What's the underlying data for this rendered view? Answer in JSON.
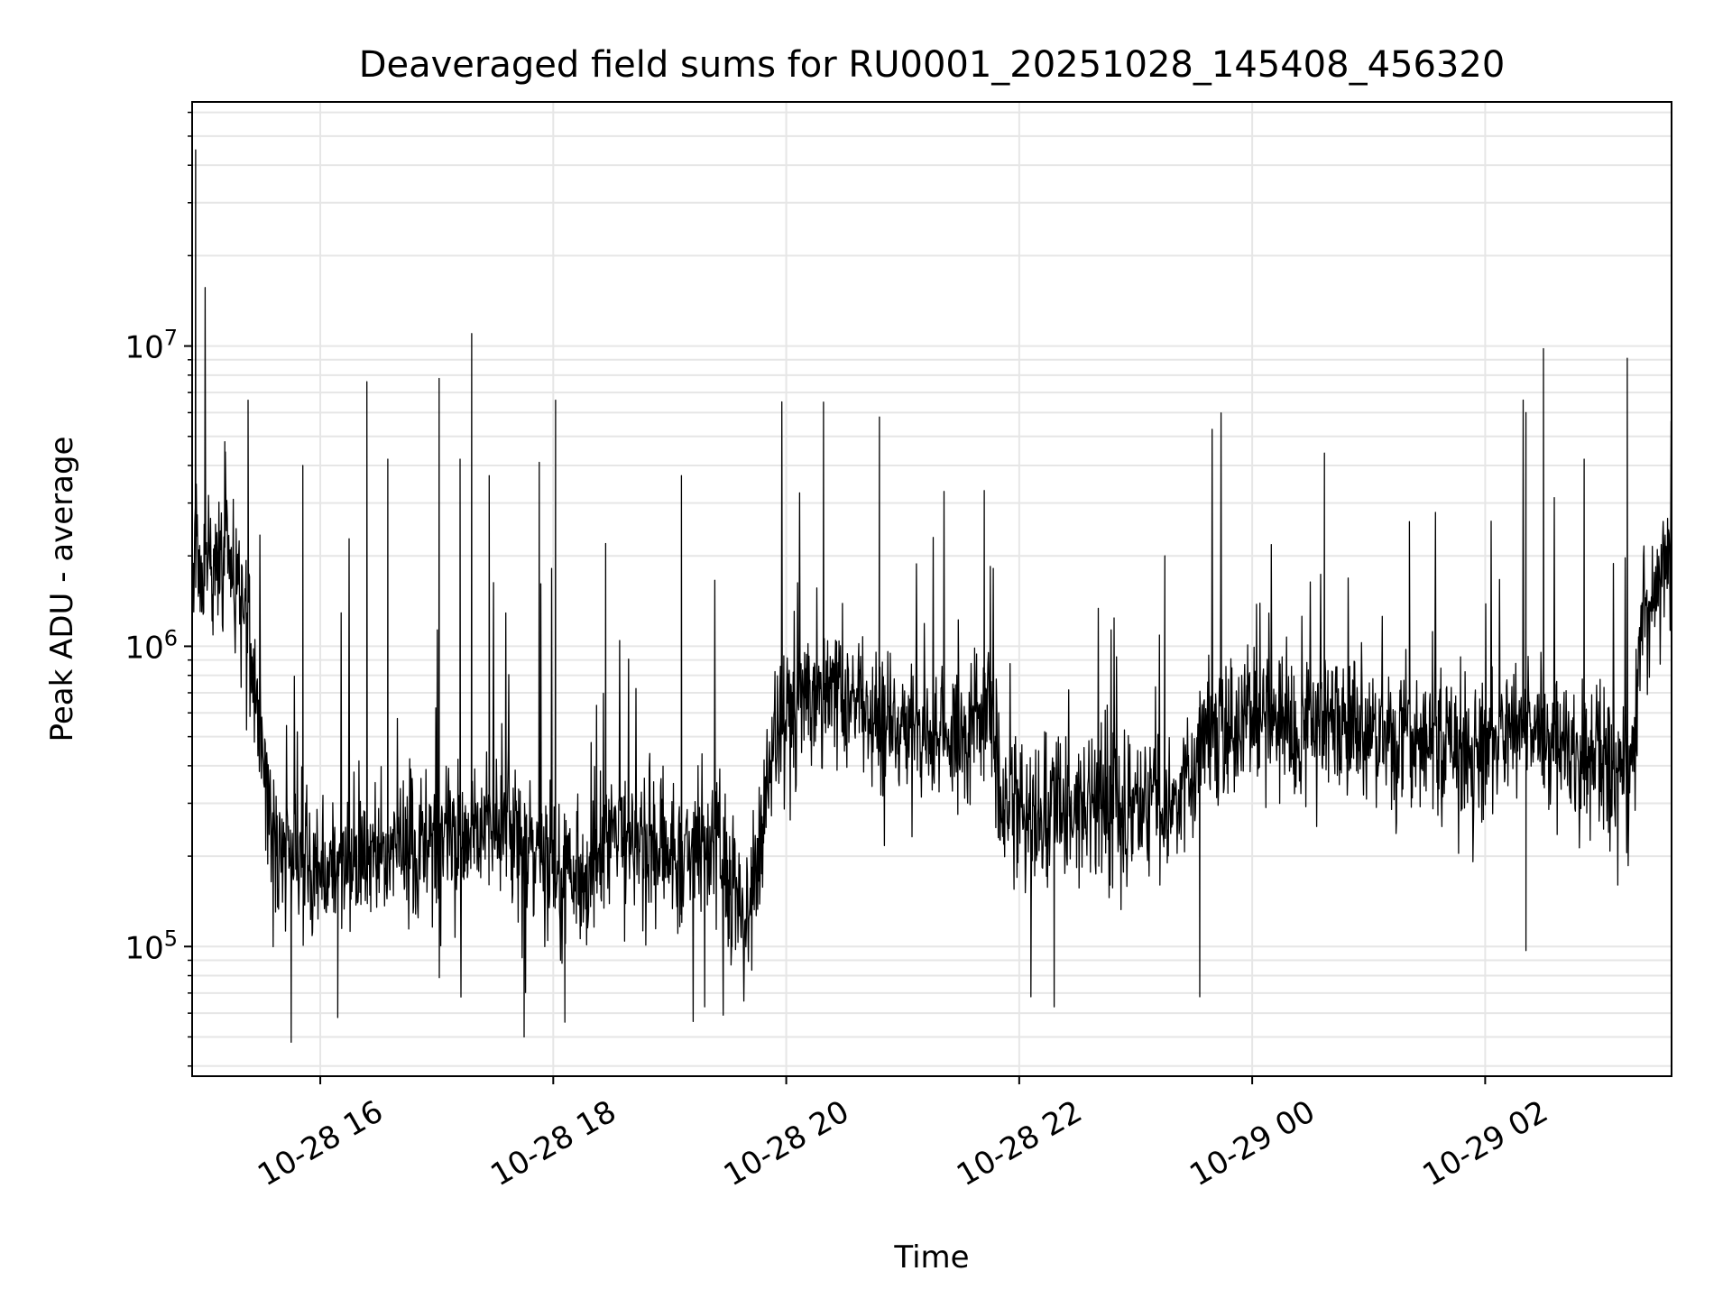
{
  "chart_data": {
    "type": "line",
    "title": "Deaveraged field sums for RU0001_20251028_145408_456320",
    "xlabel": "Time",
    "ylabel": "Peak ADU - average",
    "yscale": "log",
    "ylim": [
      37000,
      65000000
    ],
    "xlim_hours": [
      14.9,
      27.6
    ],
    "grid": true,
    "x_ticks": [
      {
        "hour": 16,
        "label": "10-28 16"
      },
      {
        "hour": 18,
        "label": "10-28 18"
      },
      {
        "hour": 20,
        "label": "10-28 20"
      },
      {
        "hour": 22,
        "label": "10-28 22"
      },
      {
        "hour": 24,
        "label": "10-29 00"
      },
      {
        "hour": 26,
        "label": "10-29 02"
      }
    ],
    "y_ticks": [
      {
        "value": 100000,
        "base": "10",
        "exp": "5"
      },
      {
        "value": 1000000,
        "base": "10",
        "exp": "6"
      },
      {
        "value": 10000000,
        "base": "10",
        "exp": "7"
      }
    ],
    "series_color": "#000000",
    "series": [
      {
        "name": "field sums",
        "baseline_hours": [
          14.9,
          15.1,
          15.2,
          15.35,
          15.45,
          15.6,
          16.0,
          16.5,
          17.0,
          17.5,
          17.8,
          18.2,
          18.6,
          19.0,
          19.4,
          19.65,
          19.75,
          19.9,
          20.1,
          20.4,
          20.8,
          21.2,
          21.6,
          21.75,
          21.85,
          22.2,
          22.6,
          23.0,
          23.3,
          23.6,
          24.0,
          24.5,
          25.0,
          25.5,
          25.9,
          26.2,
          26.6,
          27.0,
          27.25,
          27.35,
          27.5,
          27.6
        ],
        "baseline_values": [
          1900000,
          1950000,
          1800000,
          1400000,
          700000,
          220000,
          180000,
          200000,
          220000,
          270000,
          210000,
          160000,
          230000,
          190000,
          220000,
          120000,
          200000,
          500000,
          700000,
          750000,
          570000,
          500000,
          520000,
          600000,
          300000,
          280000,
          290000,
          280000,
          300000,
          520000,
          550000,
          570000,
          500000,
          480000,
          440000,
          560000,
          450000,
          420000,
          380000,
          1200000,
          1600000,
          2000000
        ],
        "spikes": [
          {
            "hour": 14.93,
            "value": 45000000
          },
          {
            "hour": 15.18,
            "value": 4800000
          },
          {
            "hour": 15.38,
            "value": 6600000
          },
          {
            "hour": 15.85,
            "value": 4000000
          },
          {
            "hour": 16.4,
            "value": 7600000
          },
          {
            "hour": 16.58,
            "value": 4200000
          },
          {
            "hour": 17.02,
            "value": 7800000
          },
          {
            "hour": 17.2,
            "value": 4200000
          },
          {
            "hour": 17.3,
            "value": 11000000
          },
          {
            "hour": 17.45,
            "value": 3700000
          },
          {
            "hour": 17.88,
            "value": 4100000
          },
          {
            "hour": 18.02,
            "value": 6600000
          },
          {
            "hour": 18.45,
            "value": 2200000
          },
          {
            "hour": 19.1,
            "value": 3700000
          },
          {
            "hour": 20.32,
            "value": 6500000
          },
          {
            "hour": 20.8,
            "value": 5800000
          },
          {
            "hour": 21.7,
            "value": 3300000
          },
          {
            "hour": 23.25,
            "value": 2000000
          },
          {
            "hour": 24.62,
            "value": 4400000
          },
          {
            "hour": 25.35,
            "value": 2600000
          },
          {
            "hour": 26.35,
            "value": 6000000
          },
          {
            "hour": 26.5,
            "value": 9800000
          },
          {
            "hour": 26.85,
            "value": 4200000
          },
          {
            "hour": 27.22,
            "value": 9100000
          }
        ],
        "dips": [
          {
            "hour": 15.75,
            "value": 48000
          },
          {
            "hour": 16.15,
            "value": 58000
          },
          {
            "hour": 17.75,
            "value": 50000
          },
          {
            "hour": 18.1,
            "value": 56000
          },
          {
            "hour": 19.3,
            "value": 63000
          },
          {
            "hour": 22.1,
            "value": 68000
          },
          {
            "hour": 22.3,
            "value": 63000
          },
          {
            "hour": 23.55,
            "value": 68000
          },
          {
            "hour": 26.35,
            "value": 97000
          }
        ]
      }
    ]
  }
}
